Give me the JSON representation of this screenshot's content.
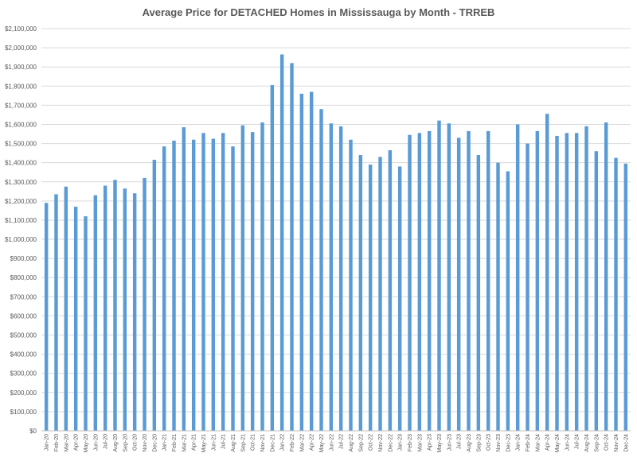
{
  "chart_data": {
    "type": "bar",
    "title": "Average Price for DETACHED  Homes in Mississauga  by Month - TRREB",
    "xlabel": "",
    "ylabel": "",
    "ylim": [
      0,
      2100000
    ],
    "ytick_step": 100000,
    "grid": true,
    "legend": "none",
    "bar_color": "#5b9bd5",
    "categories": [
      "Jan-20",
      "Feb-20",
      "Mar-20",
      "Apr-20",
      "May-20",
      "Jun-20",
      "Jul-20",
      "Aug-20",
      "Sep-20",
      "Oct-20",
      "Nov-20",
      "Dec-20",
      "Jan-21",
      "Feb-21",
      "Mar-21",
      "Apr-21",
      "May-21",
      "Jun-21",
      "Jul-21",
      "Aug-21",
      "Sep-21",
      "Oct-21",
      "Nov-21",
      "Dec-21",
      "Jan-22",
      "Feb-22",
      "Mar-22",
      "Apr-22",
      "May-22",
      "Jun-22",
      "Jul-22",
      "Aug-22",
      "Sep-22",
      "Oct-22",
      "Nov-22",
      "Dec-22",
      "Jan-23",
      "Feb-23",
      "Mar-23",
      "Apr-23",
      "May-23",
      "Jun-23",
      "Jul-23",
      "Aug-23",
      "Sep-23",
      "Oct-23",
      "Nov-23",
      "Dec-23",
      "Jan-24",
      "Feb-24",
      "Mar-24",
      "Apr-24",
      "May-24",
      "Jun-24",
      "Jul-24",
      "Aug-24",
      "Sep-24",
      "Oct-24",
      "Nov-24",
      "Dec-24"
    ],
    "values": [
      1190000,
      1235000,
      1275000,
      1170000,
      1120000,
      1230000,
      1280000,
      1310000,
      1265000,
      1240000,
      1320000,
      1415000,
      1485000,
      1515000,
      1585000,
      1520000,
      1555000,
      1525000,
      1555000,
      1485000,
      1595000,
      1560000,
      1610000,
      1805000,
      1965000,
      1920000,
      1760000,
      1770000,
      1680000,
      1605000,
      1590000,
      1520000,
      1440000,
      1390000,
      1430000,
      1465000,
      1380000,
      1545000,
      1555000,
      1565000,
      1620000,
      1605000,
      1530000,
      1565000,
      1440000,
      1565000,
      1400000,
      1355000,
      1600000,
      1500000,
      1565000,
      1655000,
      1540000,
      1555000,
      1555000,
      1590000,
      1460000,
      1610000,
      1425000,
      1395000
    ],
    "ytick_labels": [
      "$0",
      "$100,000",
      "$200,000",
      "$300,000",
      "$400,000",
      "$500,000",
      "$600,000",
      "$700,000",
      "$800,000",
      "$900,000",
      "$1,000,000",
      "$1,100,000",
      "$1,200,000",
      "$1,300,000",
      "$1,400,000",
      "$1,500,000",
      "$1,600,000",
      "$1,700,000",
      "$1,800,000",
      "$1,900,000",
      "$2,000,000",
      "$2,100,000"
    ]
  }
}
